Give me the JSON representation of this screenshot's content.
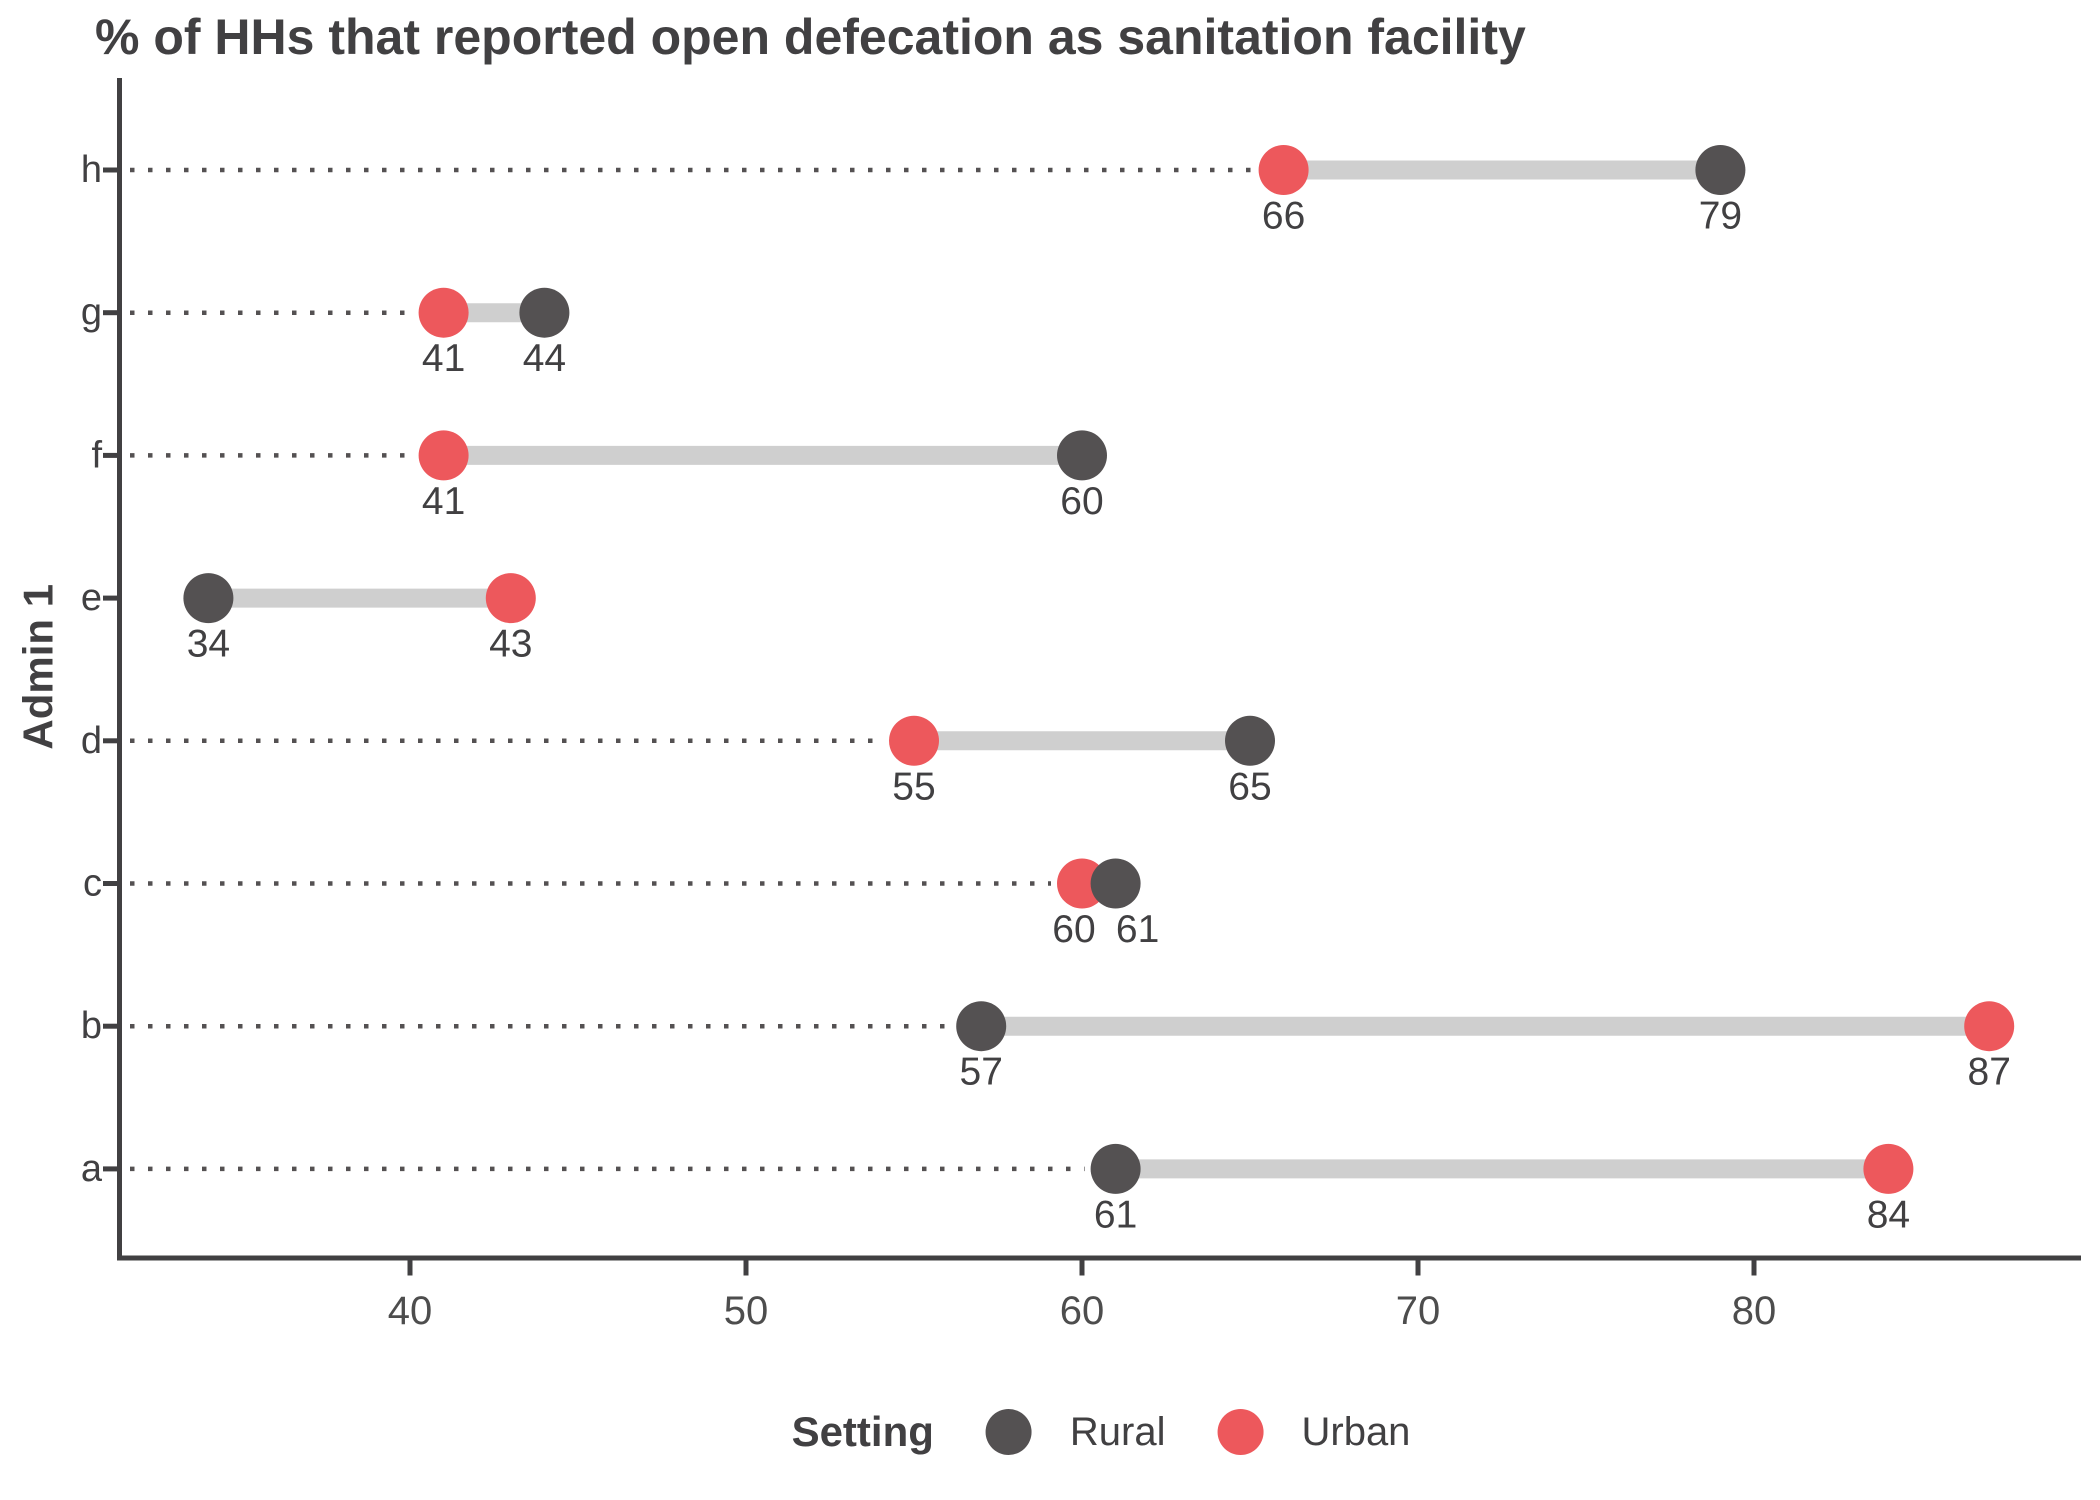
{
  "title": "% of HHs that reported open defecation as sanitation facility",
  "chart_data": {
    "type": "scatter",
    "variant": "dumbbell",
    "title": "% of HHs that reported open defecation as sanitation facility",
    "xlabel": "",
    "ylabel": "Admin 1",
    "categories": [
      "h",
      "g",
      "f",
      "e",
      "d",
      "c",
      "b",
      "a"
    ],
    "series": [
      {
        "name": "Rural",
        "color": "#545152",
        "values": [
          79,
          44,
          60,
          34,
          65,
          61,
          57,
          61
        ]
      },
      {
        "name": "Urban",
        "color": "#ED585C",
        "values": [
          66,
          41,
          41,
          43,
          55,
          60,
          87,
          84
        ]
      }
    ],
    "x_ticks": [
      "40",
      "50",
      "60",
      "70",
      "80"
    ],
    "x_tick_values": [
      40,
      50,
      60,
      70,
      80
    ],
    "xlim": [
      31.4,
      89.6
    ],
    "grid": false,
    "legend_position": "bottom",
    "connector_color": "#CFCFCF",
    "leader_line_color": "#545152",
    "axis_color": "#414042",
    "text_color": "#414042",
    "tick_label_color": "#4D4D4D"
  },
  "legend": {
    "title": "Setting",
    "items": [
      {
        "label": "Rural",
        "color": "#545152"
      },
      {
        "label": "Urban",
        "color": "#ED585C"
      }
    ]
  }
}
